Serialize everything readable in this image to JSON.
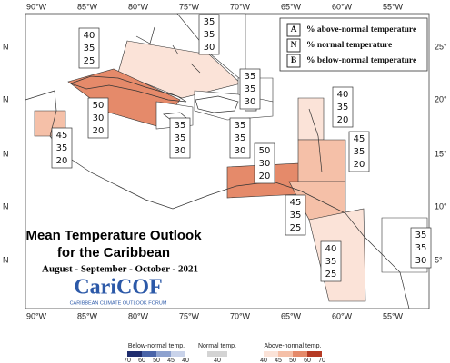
{
  "map": {
    "lon_labels": [
      "90°W",
      "85°W",
      "80°W",
      "75°W",
      "70°W",
      "65°W",
      "60°W",
      "55°W"
    ],
    "lat_labels_left": [
      "N",
      "N",
      "N",
      "N",
      "N"
    ],
    "lat_labels_right": [
      "25°",
      "20°",
      "15°",
      "10°",
      "5°"
    ],
    "legend": [
      {
        "key": "A",
        "text": "% above-normal temperature"
      },
      {
        "key": "N",
        "text": "% normal temperature"
      },
      {
        "key": "B",
        "text": "% below-normal temperature"
      }
    ],
    "title_lines": [
      "Mean Temperature Outlook",
      "for the Caribbean"
    ],
    "period": "August - September - October - 2021",
    "logo": "CariCOF",
    "logo_subtitle": "CARIBBEAN CLIMATE OUTLOOK FORUM",
    "zones": [
      {
        "values": [
          40,
          35,
          25
        ]
      },
      {
        "values": [
          35,
          35,
          30
        ]
      },
      {
        "values": [
          35,
          35,
          30
        ]
      },
      {
        "values": [
          50,
          30,
          20
        ]
      },
      {
        "values": [
          35,
          35,
          30
        ]
      },
      {
        "values": [
          35,
          35,
          30
        ]
      },
      {
        "values": [
          45,
          35,
          20
        ]
      },
      {
        "values": [
          50,
          30,
          20
        ]
      },
      {
        "values": [
          40,
          35,
          20
        ]
      },
      {
        "values": [
          45,
          35,
          20
        ]
      },
      {
        "values": [
          45,
          35,
          25
        ]
      },
      {
        "values": [
          40,
          35,
          25
        ]
      },
      {
        "values": [
          35,
          35,
          30
        ]
      }
    ],
    "colorbar": {
      "below": {
        "label": "Below-normal temp.",
        "ticks": [
          70,
          60,
          50,
          45,
          40
        ],
        "colors": [
          "#1f2d6e",
          "#4a64a8",
          "#8ea2cf",
          "#c9d3ea"
        ]
      },
      "normal": {
        "label": "Normal temp.",
        "ticks": [
          40
        ],
        "colors": [
          "#d4d4d4"
        ]
      },
      "above": {
        "label": "Above-normal temp.",
        "ticks": [
          40,
          45,
          50,
          60,
          70
        ],
        "colors": [
          "#fbe3d8",
          "#f5c0a8",
          "#e58a6a",
          "#b53a24"
        ]
      }
    }
  }
}
